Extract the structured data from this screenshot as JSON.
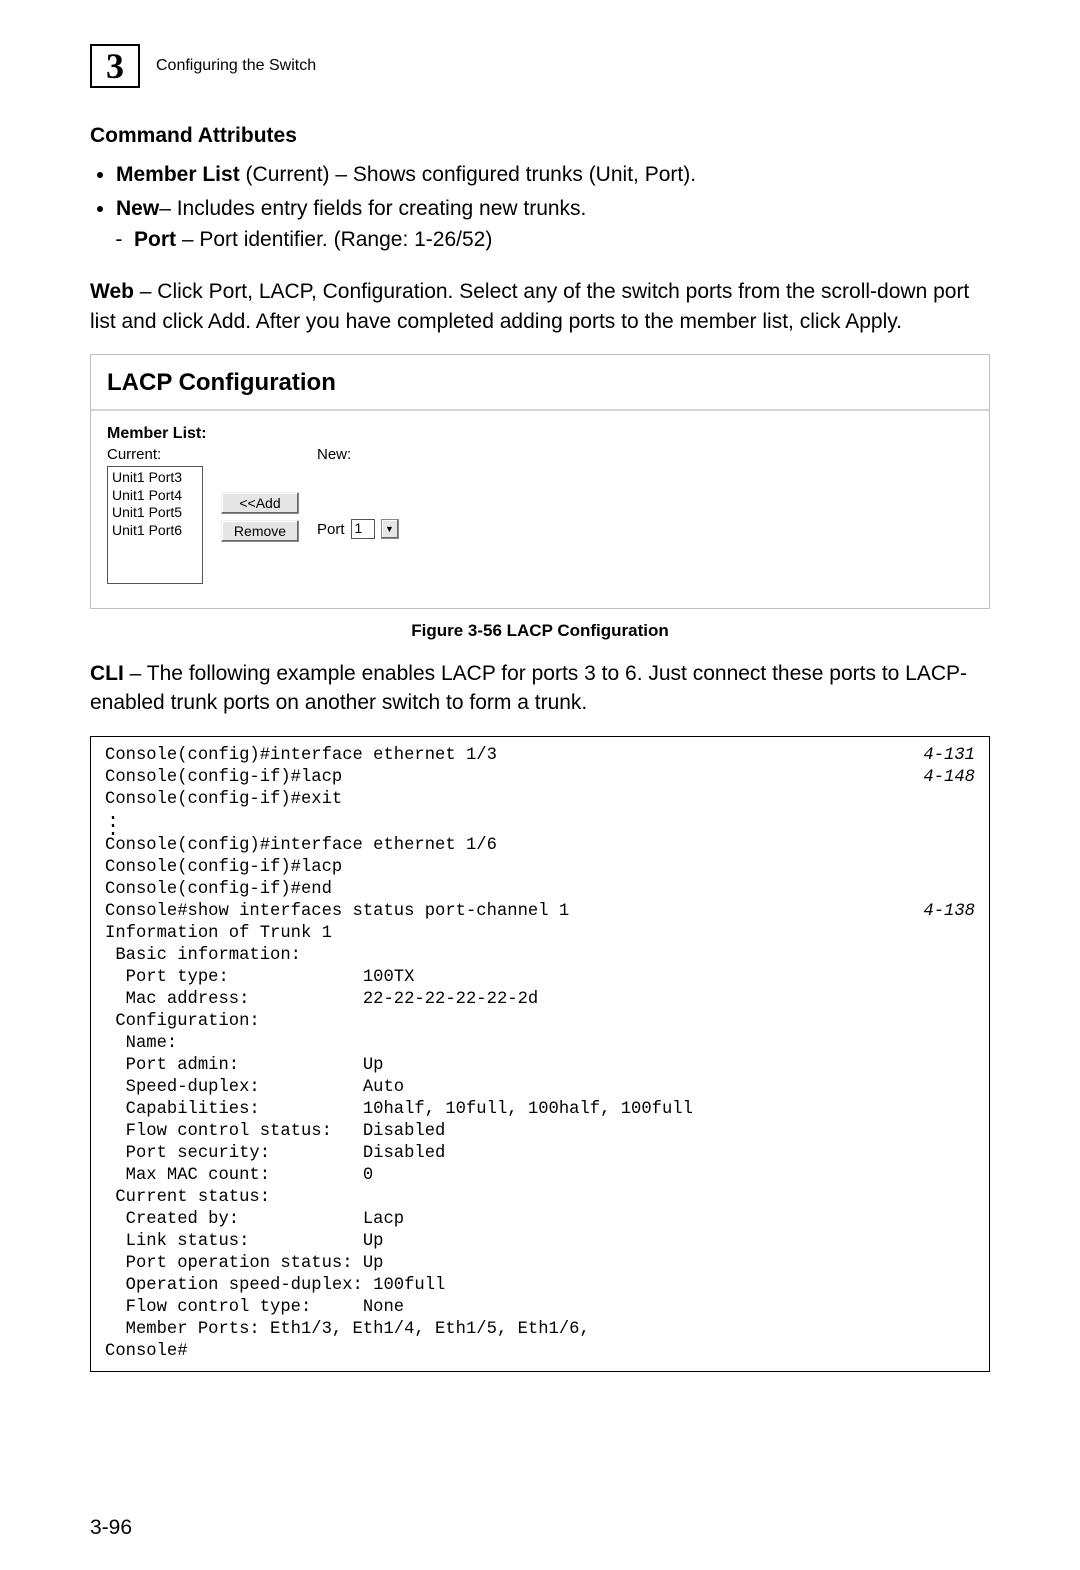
{
  "header": {
    "chapter_number": "3",
    "chapter_title": "Configuring the Switch"
  },
  "command_attributes": {
    "heading": "Command Attributes",
    "items": [
      {
        "label": "Member List",
        "paren": " (Current) ",
        "desc": "– Shows configured trunks (Unit, Port)."
      },
      {
        "label": "New",
        "paren": " ",
        "desc": "– Includes entry fields for creating new trunks."
      }
    ],
    "sub": {
      "label": "Port",
      "desc": " – Port identifier. (Range: 1-26/52)"
    }
  },
  "web_para": {
    "lead": "Web",
    "rest": " – Click Port, LACP, Configuration. Select any of the switch ports from the scroll-down port list and click Add. After you have completed adding ports to the member list, click Apply."
  },
  "lacp_panel": {
    "title": "LACP Configuration",
    "member_list_label": "Member List:",
    "current_label": "Current:",
    "new_label": "New:",
    "current_items": [
      "Unit1 Port3",
      "Unit1 Port4",
      "Unit1 Port5",
      "Unit1 Port6"
    ],
    "add_btn": "<<Add",
    "remove_btn": "Remove",
    "port_label": "Port",
    "port_value": "1"
  },
  "figure_caption": "Figure 3-56  LACP Configuration",
  "cli_para": {
    "lead": "CLI",
    "rest": " – The following example enables LACP for ports 3 to 6. Just connect these ports to LACP-enabled trunk ports on another switch to form a trunk."
  },
  "cli": {
    "lines": [
      {
        "t": "Console(config)#interface ethernet 1/3",
        "r": "4-131"
      },
      {
        "t": "Console(config-if)#lacp",
        "r": "4-148"
      },
      {
        "t": "Console(config-if)#exit",
        "r": ""
      }
    ],
    "lines2": [
      {
        "t": "Console(config)#interface ethernet 1/6",
        "r": ""
      },
      {
        "t": "Console(config-if)#lacp",
        "r": ""
      },
      {
        "t": "Console(config-if)#end",
        "r": ""
      },
      {
        "t": "Console#show interfaces status port-channel 1",
        "r": "4-138"
      },
      {
        "t": "Information of Trunk 1",
        "r": ""
      },
      {
        "t": " Basic information:",
        "r": ""
      },
      {
        "t": "  Port type:             100TX",
        "r": ""
      },
      {
        "t": "  Mac address:           22-22-22-22-22-2d",
        "r": ""
      },
      {
        "t": " Configuration:",
        "r": ""
      },
      {
        "t": "  Name:",
        "r": ""
      },
      {
        "t": "  Port admin:            Up",
        "r": ""
      },
      {
        "t": "  Speed-duplex:          Auto",
        "r": ""
      },
      {
        "t": "  Capabilities:          10half, 10full, 100half, 100full",
        "r": ""
      },
      {
        "t": "  Flow control status:   Disabled",
        "r": ""
      },
      {
        "t": "  Port security:         Disabled",
        "r": ""
      },
      {
        "t": "  Max MAC count:         0",
        "r": ""
      },
      {
        "t": " Current status:",
        "r": ""
      },
      {
        "t": "  Created by:            Lacp",
        "r": ""
      },
      {
        "t": "  Link status:           Up",
        "r": ""
      },
      {
        "t": "  Port operation status: Up",
        "r": ""
      },
      {
        "t": "  Operation speed-duplex: 100full",
        "r": ""
      },
      {
        "t": "  Flow control type:     None",
        "r": ""
      },
      {
        "t": "  Member Ports: Eth1/3, Eth1/4, Eth1/5, Eth1/6,",
        "r": ""
      },
      {
        "t": "Console#",
        "r": ""
      }
    ]
  },
  "page_number": "3-96"
}
